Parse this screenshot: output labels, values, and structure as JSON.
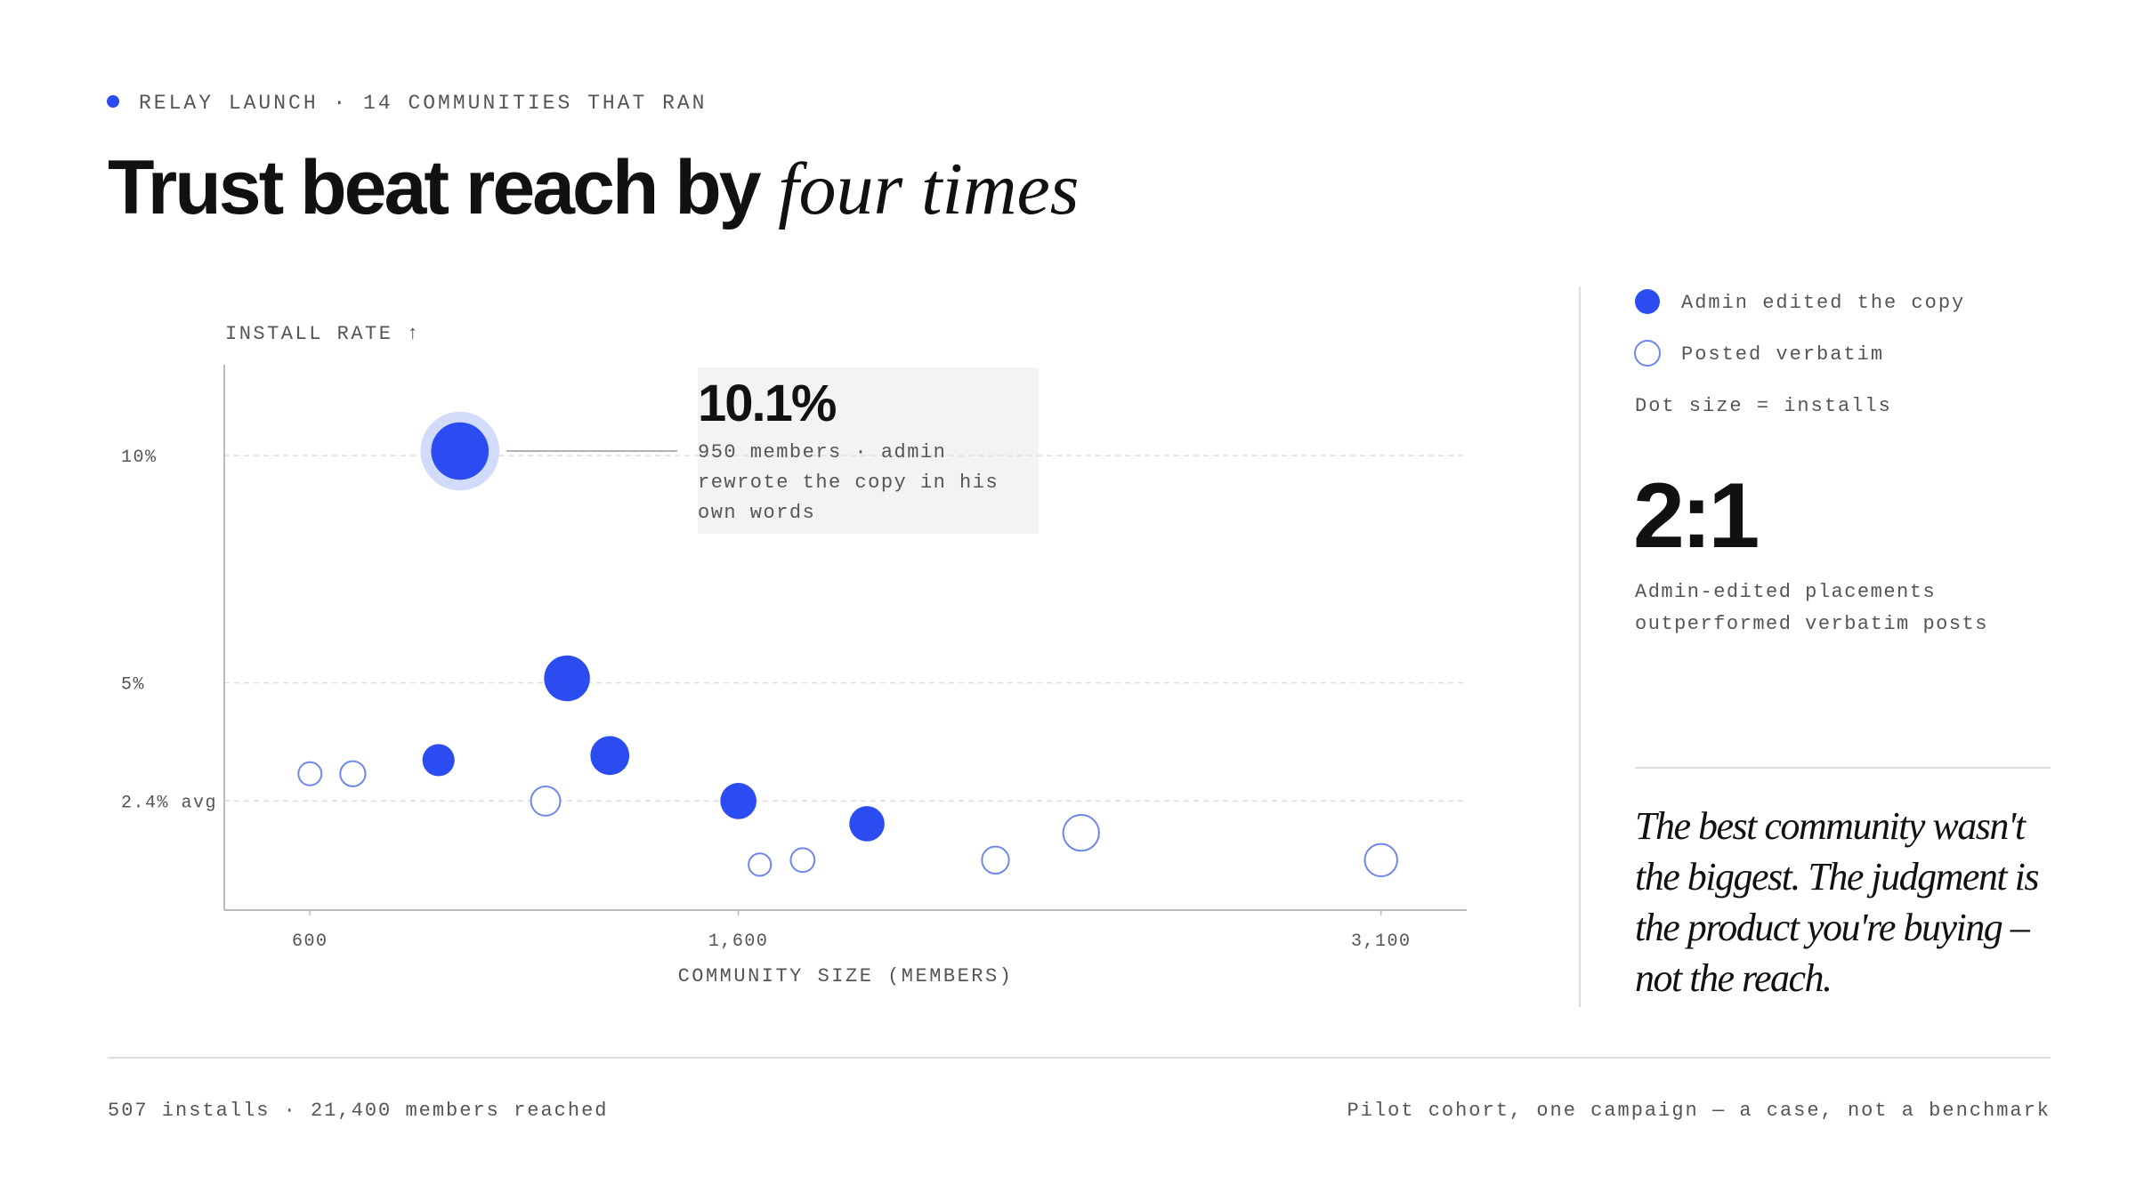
{
  "header": {
    "eyebrow": "RELAY LAUNCH · 14 COMMUNITIES THAT RAN",
    "title": "Trust beat reach by",
    "title_emphasis": "four times"
  },
  "chart_data": {
    "type": "scatter",
    "y_label": "INSTALL RATE ↑",
    "x_label": "COMMUNITY SIZE (MEMBERS)",
    "xlim": [
      400,
      3300
    ],
    "ylim": [
      0,
      12
    ],
    "xticks": [
      600,
      {
        "value": 1600,
        "label": "1,600"
      },
      {
        "value": 3100,
        "label": "3,100"
      }
    ],
    "yticks": [
      {
        "value": 2.4,
        "label": "2.4% avg"
      },
      {
        "value": 5,
        "label": "5%"
      },
      {
        "value": 10,
        "label": "10%"
      }
    ],
    "grid": true,
    "series": [
      {
        "name": "Admin edited the copy",
        "color": "#2b4cf0",
        "marker": "filled",
        "x": [
          950,
          1200,
          900,
          1300,
          1600,
          1900
        ],
        "values": [
          10.1,
          5.1,
          3.3,
          3.4,
          2.4,
          1.9
        ],
        "sizes": [
          96,
          61,
          30,
          44,
          38,
          36
        ]
      },
      {
        "name": "Posted verbatim",
        "color": "#6f86ee",
        "marker": "hollow",
        "x": [
          600,
          700,
          1150,
          1650,
          1750,
          2200,
          2400,
          3100
        ],
        "values": [
          3.0,
          3.0,
          2.4,
          1.0,
          1.1,
          1.1,
          1.7,
          1.1
        ],
        "sizes": [
          18,
          21,
          28,
          17,
          19,
          24,
          41,
          34
        ]
      }
    ],
    "size_legend": "Dot size = installs",
    "annotation": {
      "title": "10.1%",
      "text": "950 members · admin rewrote the copy in his own words"
    }
  },
  "sidebar": {
    "stat": "2:1",
    "stat_caption": "Admin-edited placements outperformed verbatim posts",
    "quote": "The best community wasn't the biggest. The judgment is the product you're buying – not the reach."
  },
  "footer": {
    "left": "507 installs · 21,400 members reached",
    "right": "Pilot cohort, one campaign — a case, not a benchmark"
  }
}
